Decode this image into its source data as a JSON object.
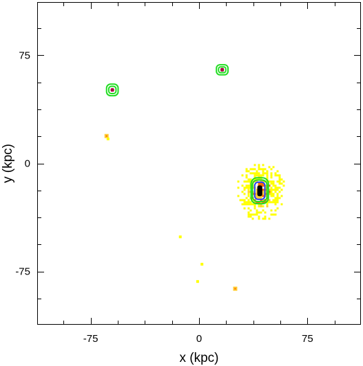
{
  "chart_data": {
    "type": "heatmap",
    "title": "",
    "xlabel": "x (kpc)",
    "ylabel": "y (kpc)",
    "xlim": [
      -112,
      112
    ],
    "ylim": [
      -112,
      112
    ],
    "x_ticks": [
      -75,
      0,
      75
    ],
    "y_ticks": [
      -75,
      0,
      75
    ],
    "x_tick_labels": [
      "-75",
      "0",
      "75"
    ],
    "y_tick_labels": [
      "-75",
      "0",
      "75"
    ],
    "minor_tick_step": 18.75,
    "grid": false,
    "legend": "none",
    "colors": {
      "background": "#ffffff",
      "axis": "#000000",
      "halo_outer": "#ffff00",
      "halo_mid": "#ffcc33",
      "halo_inner": "#ff6600",
      "contour_green": "#22dd22",
      "contour_blue": "#2244ff",
      "core": "#000000",
      "satellite_core": "#aa0044"
    },
    "objects": [
      {
        "name": "main galaxy",
        "x": 42,
        "y": -19,
        "halo_width": 34,
        "halo_height": 40,
        "contour_levels": [
          {
            "color": "#22dd22",
            "width": 12,
            "height": 18
          },
          {
            "color": "#22dd22",
            "width": 10,
            "height": 15
          },
          {
            "color": "#2244ff",
            "width": 7,
            "height": 12
          },
          {
            "color": "#000000",
            "width": 3,
            "height": 7
          }
        ]
      },
      {
        "name": "satellite 1",
        "x": -60,
        "y": 51,
        "contour_levels": [
          {
            "color": "#22dd22",
            "width": 8,
            "height": 8
          },
          {
            "color": "#22dd22",
            "width": 5,
            "height": 5
          },
          {
            "color": "#aa0044",
            "width": 2,
            "height": 2
          }
        ]
      },
      {
        "name": "satellite 2",
        "x": 16,
        "y": 65,
        "contour_levels": [
          {
            "color": "#22dd22",
            "width": 8,
            "height": 7
          },
          {
            "color": "#22dd22",
            "width": 5,
            "height": 4
          },
          {
            "color": "#aa0044",
            "width": 2,
            "height": 2
          }
        ]
      }
    ],
    "faint_points": [
      {
        "x": -64,
        "y": 19,
        "level": 2
      },
      {
        "x": -63,
        "y": 17,
        "level": 1
      },
      {
        "x": 25,
        "y": -87,
        "level": 2
      },
      {
        "x": 2,
        "y": -70,
        "level": 1
      },
      {
        "x": -13,
        "y": -51,
        "level": 1
      },
      {
        "x": -1,
        "y": -82,
        "level": 1
      }
    ]
  }
}
